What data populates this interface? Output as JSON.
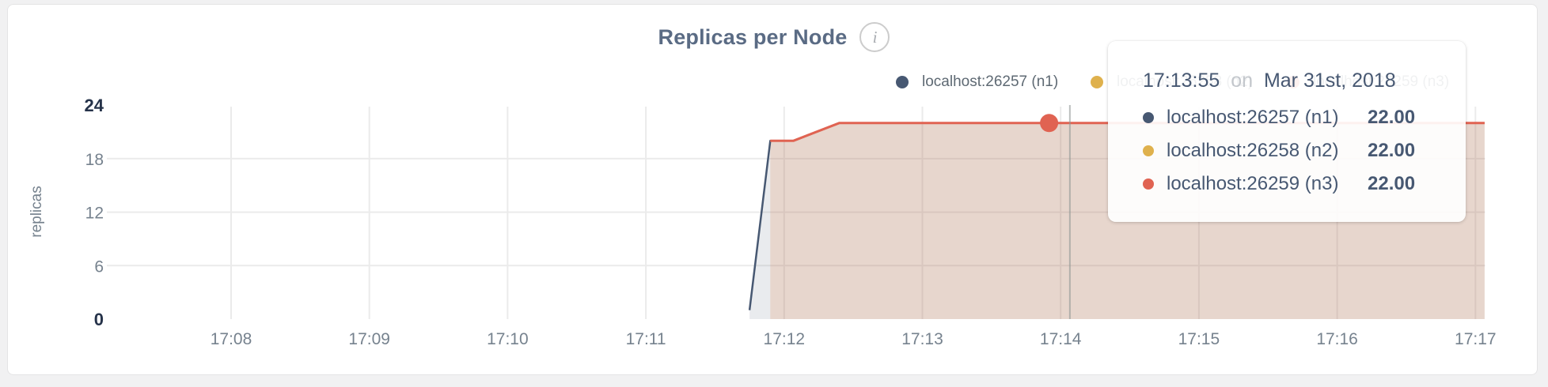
{
  "header": {
    "title": "Replicas per Node",
    "info_icon_glyph": "i"
  },
  "legend": {
    "items": [
      {
        "label": "localhost:26257 (n1)",
        "color": "#475872"
      },
      {
        "label": "localhost:26258 (n2)",
        "color": "#dfb14d"
      },
      {
        "label": "localhost:26259 (n3)",
        "color": "#e06352"
      }
    ]
  },
  "tooltip": {
    "time": "17:13:55",
    "conjunction": "on",
    "date": "Mar 31st, 2018",
    "rows": [
      {
        "label": "localhost:26257 (n1)",
        "value": "22.00",
        "color": "#475872"
      },
      {
        "label": "localhost:26258 (n2)",
        "value": "22.00",
        "color": "#dfb14d"
      },
      {
        "label": "localhost:26259 (n3)",
        "value": "22.00",
        "color": "#e06352"
      }
    ]
  },
  "chart_data": {
    "type": "area",
    "title": "Replicas per Node",
    "ylabel": "replicas",
    "ylim": [
      0,
      24
    ],
    "yticks": [
      0,
      6,
      12,
      18,
      24
    ],
    "emphasized_yticks": [
      0,
      24
    ],
    "xticks": [
      "17:08",
      "17:09",
      "17:10",
      "17:11",
      "17:12",
      "17:13",
      "17:14",
      "17:15",
      "17:16",
      "17:17"
    ],
    "grid": true,
    "grid_color": "#ebebeb",
    "tick_color": "#76828e",
    "emph_tick_color": "#26334a",
    "legend_position": "top-right",
    "series": [
      {
        "name": "localhost:26257 (n1)",
        "color": "#475872",
        "fill": "rgba(71,88,114,0.12)",
        "points": [
          [
            "17:11:45",
            1
          ],
          [
            "17:11:54",
            20
          ],
          [
            "17:12:04",
            20
          ],
          [
            "17:12:24",
            22
          ],
          [
            "17:17:04",
            22
          ]
        ]
      },
      {
        "name": "localhost:26258 (n2)",
        "color": "#dfb14d",
        "fill": "rgba(223,177,77,0.10)",
        "points": [
          [
            "17:11:54",
            20
          ],
          [
            "17:12:04",
            20
          ],
          [
            "17:12:24",
            22
          ],
          [
            "17:17:04",
            22
          ]
        ]
      },
      {
        "name": "localhost:26259 (n3)",
        "color": "#e06352",
        "fill": "rgba(224,99,82,0.11)",
        "points": [
          [
            "17:11:54",
            20
          ],
          [
            "17:12:04",
            20
          ],
          [
            "17:12:24",
            22
          ],
          [
            "17:17:04",
            22
          ]
        ]
      }
    ],
    "hover": {
      "time": "17:13:55",
      "cursor_time": "17:14:04",
      "crosshair_color": "#8e9693",
      "values": [
        22,
        22,
        22
      ],
      "dot_series": "localhost:26259 (n3)"
    }
  }
}
